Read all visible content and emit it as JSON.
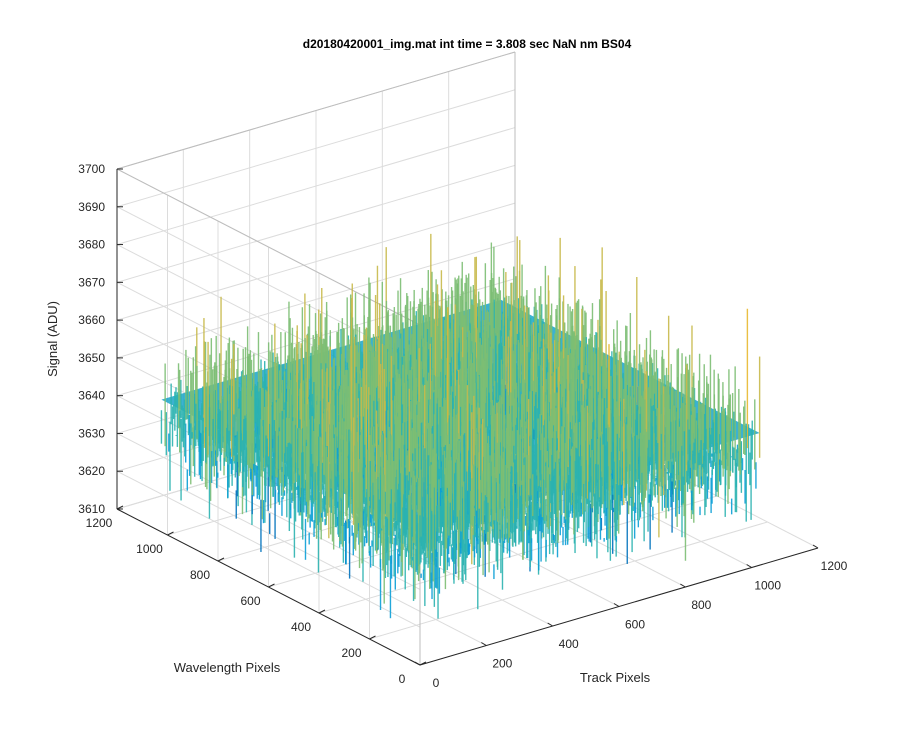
{
  "chart_data": {
    "type": "surface",
    "title": "d20180420001_img.mat int time = 3.808 sec  NaN nm BS04",
    "xlabel": "Track Pixels",
    "ylabel": "Wavelength Pixels",
    "zlabel": "Signal (ADU)",
    "xlim": [
      0,
      1200
    ],
    "ylim": [
      0,
      1200
    ],
    "zlim": [
      3610,
      3700
    ],
    "x_ticks": [
      "0",
      "200",
      "400",
      "600",
      "800",
      "1000",
      "1200"
    ],
    "y_ticks": [
      "0",
      "200",
      "400",
      "600",
      "800",
      "1000",
      "1200"
    ],
    "z_ticks": [
      "3610",
      "3620",
      "3630",
      "3640",
      "3650",
      "3660",
      "3670",
      "3680",
      "3690",
      "3700"
    ],
    "grid": true,
    "data_extent": {
      "x": [
        0,
        1024
      ],
      "y": [
        0,
        1024
      ]
    },
    "signal": {
      "mean": 3645,
      "min": 3611,
      "max": 3690
    },
    "colormap": [
      "#0072bd",
      "#0b9fd6",
      "#2bb3b0",
      "#7cbe73",
      "#c8b94a",
      "#e8b830"
    ]
  }
}
